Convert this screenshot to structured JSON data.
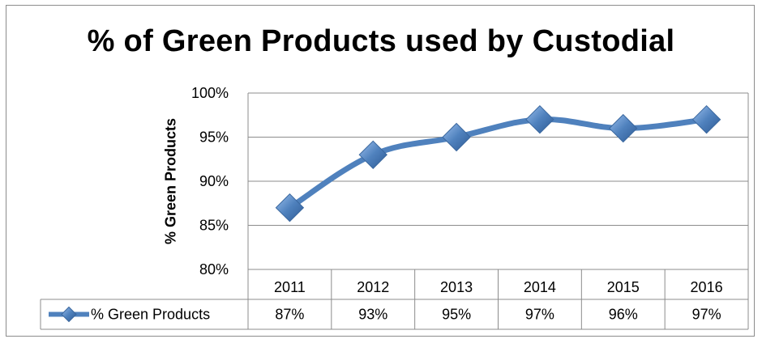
{
  "chart_data": {
    "type": "line",
    "title": "% of Green Products used by Custodial",
    "xlabel": "",
    "ylabel": "% Green Products",
    "categories": [
      "2011",
      "2012",
      "2013",
      "2014",
      "2015",
      "2016"
    ],
    "series": [
      {
        "name": "% Green Products",
        "values": [
          87,
          93,
          95,
          97,
          96,
          97
        ],
        "labels": [
          "87%",
          "93%",
          "95%",
          "97%",
          "96%",
          "97%"
        ],
        "color": "#4f81bd",
        "marker": "diamond"
      }
    ],
    "yticks": [
      "80%",
      "85%",
      "90%",
      "95%",
      "100%"
    ],
    "ylim": [
      80,
      100
    ],
    "grid": true,
    "legend": "data-table"
  }
}
